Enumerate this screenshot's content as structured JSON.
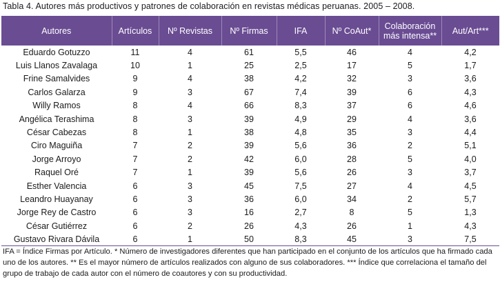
{
  "caption": "Tabla 4. Autores más productivos y patrones de colaboración en revistas médicas peruanas. 2005 – 2008.",
  "accent_color": "#6a4c93",
  "table": {
    "headers": {
      "autores": "Autores",
      "articulos": "Artículos",
      "revistas": "Nº Revistas",
      "firmas": "Nº Firmas",
      "ifa": "IFA",
      "coaut": "Nº CoAut*",
      "colab_line1": "Colaboración",
      "colab_line2": "más intensa**",
      "autart": "Aut/Art***"
    },
    "rows": [
      [
        "Eduardo Gotuzzo",
        "11",
        "4",
        "61",
        "5,5",
        "46",
        "4",
        "4,2"
      ],
      [
        "Luis Llanos Zavalaga",
        "10",
        "1",
        "25",
        "2,5",
        "17",
        "5",
        "1,7"
      ],
      [
        "Frine Samalvides",
        "9",
        "4",
        "38",
        "4,2",
        "32",
        "3",
        "3,6"
      ],
      [
        "Carlos Galarza",
        "9",
        "3",
        "67",
        "7,4",
        "39",
        "6",
        "4,3"
      ],
      [
        "Willy Ramos",
        "8",
        "4",
        "66",
        "8,3",
        "37",
        "6",
        "4,6"
      ],
      [
        "Angélica Terashima",
        "8",
        "3",
        "39",
        "4,9",
        "29",
        "4",
        "3,6"
      ],
      [
        "César Cabezas",
        "8",
        "1",
        "38",
        "4,8",
        "35",
        "3",
        "4,4"
      ],
      [
        "Ciro Maguiña",
        "7",
        "2",
        "39",
        "5,6",
        "36",
        "2",
        "5,1"
      ],
      [
        "Jorge Arroyo",
        "7",
        "2",
        "42",
        "6,0",
        "28",
        "5",
        "4,0"
      ],
      [
        "Raquel Oré",
        "7",
        "1",
        "39",
        "5,6",
        "26",
        "3",
        "3,7"
      ],
      [
        "Esther Valencia",
        "6",
        "3",
        "45",
        "7,5",
        "27",
        "4",
        "4,5"
      ],
      [
        "Leandro Huayanay",
        "6",
        "3",
        "36",
        "6,0",
        "34",
        "2",
        "5,7"
      ],
      [
        "Jorge Rey de Castro",
        "6",
        "3",
        "16",
        "2,7",
        "8",
        "5",
        "1,3"
      ],
      [
        "César Gutiérrez",
        "6",
        "2",
        "26",
        "4,3",
        "26",
        "1",
        "4,3"
      ],
      [
        "Gustavo Rivara Dávila",
        "6",
        "1",
        "50",
        "8,3",
        "45",
        "3",
        "7,5"
      ]
    ]
  },
  "footnote": "IFA = Índice Firmas por Artículo. * Número de investigadores diferentes que han participado en el conjunto de los artículos que ha firmado cada uno de los autores. ** Es el mayor número de artículos realizados con alguno de sus colaboradores. *** Índice que correlaciona el tamaño del grupo de trabajo de cada autor con el número de coautores y con su productividad."
}
